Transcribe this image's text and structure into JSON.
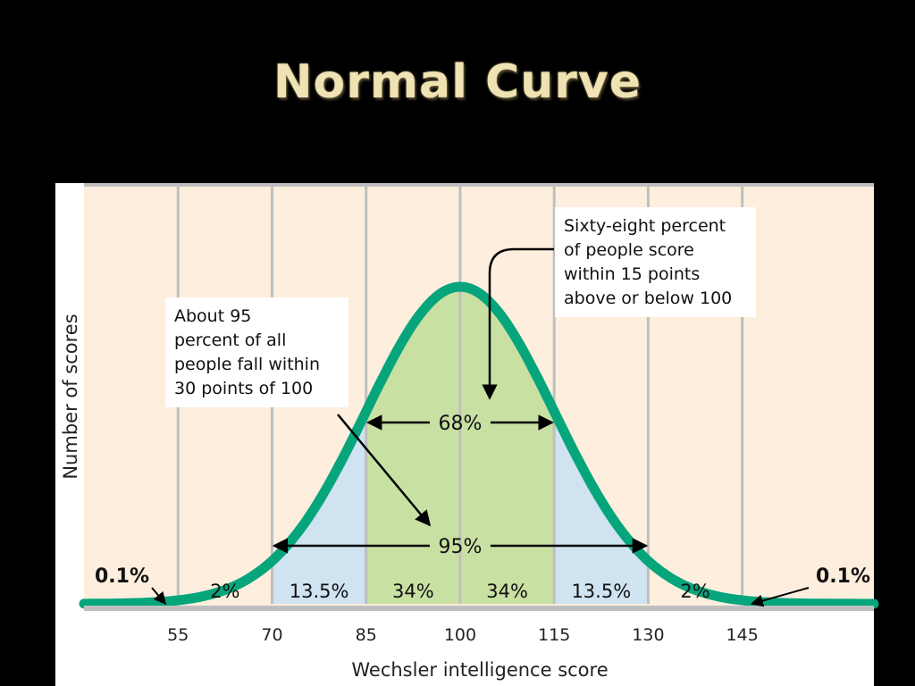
{
  "slide": {
    "title": "Normal Curve"
  },
  "chart_data": {
    "type": "area",
    "title": "Normal Curve",
    "xlabel": "Wechsler intelligence score",
    "ylabel": "Number of scores",
    "mean": 100,
    "sd": 15,
    "xlim": [
      40,
      166
    ],
    "ticks": [
      55,
      70,
      85,
      100,
      115,
      130,
      145
    ],
    "tick_labels": [
      "55",
      "70",
      "85",
      "100",
      "115",
      "130",
      "145"
    ],
    "segments": [
      {
        "from": 40,
        "to": 55,
        "label": "0.1%"
      },
      {
        "from": 55,
        "to": 70,
        "label": "2%"
      },
      {
        "from": 70,
        "to": 85,
        "label": "13.5%"
      },
      {
        "from": 85,
        "to": 100,
        "label": "34%"
      },
      {
        "from": 100,
        "to": 115,
        "label": "34%"
      },
      {
        "from": 115,
        "to": 130,
        "label": "13.5%"
      },
      {
        "from": 130,
        "to": 145,
        "label": "2%"
      },
      {
        "from": 145,
        "to": 166,
        "label": "0.1%"
      }
    ],
    "ranges": [
      {
        "from": 85,
        "to": 115,
        "label": "68%"
      },
      {
        "from": 70,
        "to": 130,
        "label": "95%"
      }
    ],
    "annotations": [
      {
        "id": "sixty_eight",
        "lines": [
          "Sixty-eight percent",
          "of people score",
          "within 15 points",
          "above or below 100"
        ]
      },
      {
        "id": "ninety_five",
        "lines": [
          "About 95",
          "percent of all",
          "people fall within",
          "30 points of 100"
        ]
      }
    ],
    "colors": {
      "curve": "#07a57c",
      "band_68": "#c9e0a3",
      "band_95": "#cfe3f1",
      "plot_background": "#fdeedd",
      "gridline": "#bfbfbf"
    },
    "grid": true
  }
}
